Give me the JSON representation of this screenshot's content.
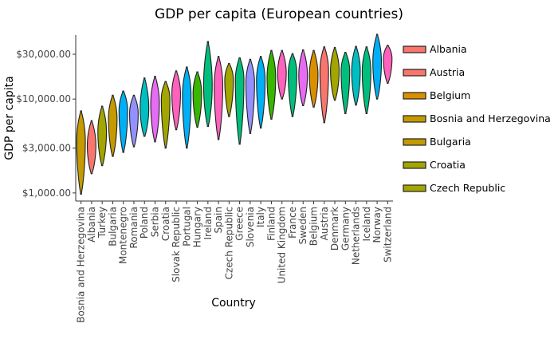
{
  "chart_data": {
    "type": "violin",
    "title": "GDP per capita (European countries)",
    "xlabel": "Country",
    "ylabel": "GDP per capita",
    "y_scale": "log",
    "ylim": [
      820,
      48000
    ],
    "y_ticks": [
      {
        "value": 1000,
        "label": "$1,000.00"
      },
      {
        "value": 3000,
        "label": "$3,000.00"
      },
      {
        "value": 10000,
        "label": "$10,000.00"
      },
      {
        "value": 30000,
        "label": "$30,000.00"
      }
    ],
    "grid": false,
    "legend_position": "right",
    "categories": [
      {
        "country": "Bosnia and Herzegovina",
        "min": 970,
        "max": 7500,
        "median": 3600,
        "color": "#C49A00"
      },
      {
        "country": "Albania",
        "min": 1600,
        "max": 5900,
        "median": 3200,
        "color": "#F8766D"
      },
      {
        "country": "Turkey",
        "min": 1950,
        "max": 8400,
        "median": 4500,
        "color": "#A3A500"
      },
      {
        "country": "Bulgaria",
        "min": 2450,
        "max": 11000,
        "median": 6200,
        "color": "#C49A00"
      },
      {
        "country": "Montenegro",
        "min": 2700,
        "max": 12200,
        "median": 7500,
        "color": "#00B0F6"
      },
      {
        "country": "Romania",
        "min": 3100,
        "max": 11000,
        "median": 7000,
        "color": "#9590FF"
      },
      {
        "country": "Poland",
        "min": 4000,
        "max": 16800,
        "median": 8000,
        "color": "#00BFC4"
      },
      {
        "country": "Serbia",
        "min": 3500,
        "max": 17500,
        "median": 9000,
        "color": "#E76BF3"
      },
      {
        "country": "Croatia",
        "min": 3000,
        "max": 15400,
        "median": 10000,
        "color": "#A3A500"
      },
      {
        "country": "Slovak Republic",
        "min": 4700,
        "max": 20000,
        "median": 11500,
        "color": "#FF62BC"
      },
      {
        "country": "Portugal",
        "min": 3000,
        "max": 22000,
        "median": 11000,
        "color": "#00B0F6"
      },
      {
        "country": "Hungary",
        "min": 5000,
        "max": 19500,
        "median": 11500,
        "color": "#39B600"
      },
      {
        "country": "Ireland",
        "min": 5100,
        "max": 41000,
        "median": 14000,
        "color": "#00BF7D"
      },
      {
        "country": "Spain",
        "min": 3700,
        "max": 28500,
        "median": 14000,
        "color": "#FF62BC"
      },
      {
        "country": "Czech Republic",
        "min": 6500,
        "max": 24000,
        "median": 16000,
        "color": "#A3A500"
      },
      {
        "country": "Greece",
        "min": 3300,
        "max": 27500,
        "median": 16000,
        "color": "#00BF7D"
      },
      {
        "country": "Slovenia",
        "min": 4300,
        "max": 26500,
        "median": 15000,
        "color": "#9590FF"
      },
      {
        "country": "Italy",
        "min": 4900,
        "max": 28500,
        "median": 16000,
        "color": "#00B0F6"
      },
      {
        "country": "Finland",
        "min": 6100,
        "max": 33000,
        "median": 17000,
        "color": "#39B600"
      },
      {
        "country": "United Kingdom",
        "min": 10000,
        "max": 33000,
        "median": 19000,
        "color": "#FF62BC"
      },
      {
        "country": "France",
        "min": 6500,
        "max": 30500,
        "median": 19000,
        "color": "#00BF7D"
      },
      {
        "country": "Sweden",
        "min": 8500,
        "max": 33500,
        "median": 18000,
        "color": "#E76BF3"
      },
      {
        "country": "Belgium",
        "min": 8200,
        "max": 33000,
        "median": 18000,
        "color": "#D89000"
      },
      {
        "country": "Austria",
        "min": 5600,
        "max": 36000,
        "median": 20000,
        "color": "#F8766D"
      },
      {
        "country": "Denmark",
        "min": 9700,
        "max": 35500,
        "median": 20000,
        "color": "#A3A500"
      },
      {
        "country": "Germany",
        "min": 7000,
        "max": 31500,
        "median": 20000,
        "color": "#00BF7D"
      },
      {
        "country": "Netherlands",
        "min": 8600,
        "max": 36500,
        "median": 20000,
        "color": "#00BFC4"
      },
      {
        "country": "Iceland",
        "min": 7000,
        "max": 36000,
        "median": 20000,
        "color": "#00BF7D"
      },
      {
        "country": "Norway",
        "min": 10000,
        "max": 49000,
        "median": 25000,
        "color": "#00B0F6"
      },
      {
        "country": "Switzerland",
        "min": 14700,
        "max": 37500,
        "median": 27000,
        "color": "#FF62BC"
      }
    ],
    "legend": [
      {
        "label": "Albania",
        "color": "#F8766D"
      },
      {
        "label": "Austria",
        "color": "#F8766D"
      },
      {
        "label": "Belgium",
        "color": "#D89000"
      },
      {
        "label": "Bosnia and Herzegovina",
        "color": "#C49A00"
      },
      {
        "label": "Bulgaria",
        "color": "#C49A00"
      },
      {
        "label": "Croatia",
        "color": "#A3A500"
      },
      {
        "label": "Czech Republic",
        "color": "#A3A500"
      }
    ]
  }
}
